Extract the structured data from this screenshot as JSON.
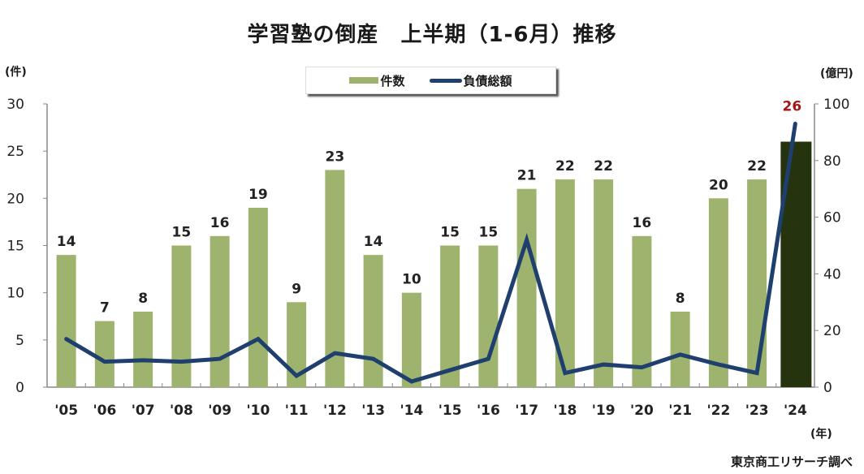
{
  "title": "学習塾の倒産　上半期（1-6月）推移",
  "legend": {
    "bar_label": "件数",
    "line_label": "負債総額"
  },
  "units": {
    "left": "(件)",
    "right": "(億円)",
    "x": "(年)"
  },
  "source": "東京商工リサーチ調べ",
  "colors": {
    "bar": "#9db36e",
    "bar_highlight": "#26330f",
    "line": "#1f3f6e",
    "highlight_label": "#a01818"
  },
  "chart_data": {
    "type": "bar",
    "title": "学習塾の倒産　上半期（1-6月）推移",
    "categories": [
      "'05",
      "'06",
      "'07",
      "'08",
      "'09",
      "'10",
      "'11",
      "'12",
      "'13",
      "'14",
      "'15",
      "'16",
      "'17",
      "'18",
      "'19",
      "'20",
      "'21",
      "'22",
      "'23",
      "'24"
    ],
    "series": [
      {
        "name": "件数",
        "type": "bar",
        "axis": "left",
        "values": [
          14,
          7,
          8,
          15,
          16,
          19,
          9,
          23,
          14,
          10,
          15,
          15,
          21,
          22,
          22,
          16,
          8,
          20,
          22,
          26
        ]
      },
      {
        "name": "負債総額",
        "type": "line",
        "axis": "right",
        "values": [
          17,
          9,
          9.5,
          9,
          10,
          17,
          4,
          12,
          10,
          2,
          6,
          10,
          52,
          5,
          8,
          7,
          11.5,
          8,
          5,
          93
        ]
      }
    ],
    "xlabel": "(年)",
    "ylabel": "(件)",
    "ylabel_right": "(億円)",
    "ylim": [
      0,
      30
    ],
    "ylim_right": [
      0,
      100
    ],
    "yticks": [
      0,
      5,
      10,
      15,
      20,
      25,
      30
    ],
    "yticks_right": [
      0,
      20,
      40,
      60,
      80,
      100
    ],
    "highlight": {
      "category": "'24",
      "label": "26"
    },
    "grid": false,
    "legend_position": "top-center"
  }
}
